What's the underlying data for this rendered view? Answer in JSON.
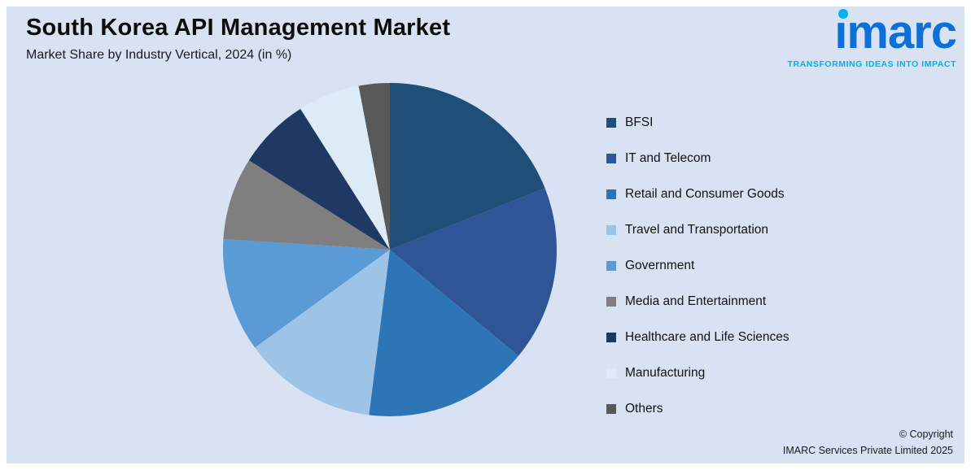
{
  "header": {
    "title": "South Korea API Management Market",
    "subtitle": "Market Share by Industry Vertical, 2024 (in %)"
  },
  "logo": {
    "name": "imarc",
    "tagline": "TRANSFORMING IDEAS INTO IMPACT",
    "text_color": "#0e6fd6",
    "accent_color": "#00b0f0"
  },
  "footer": {
    "copyright_line1": "© Copyright",
    "copyright_line2": "IMARC Services Private Limited 2025"
  },
  "colors": {
    "panel_background": "#d9e2f3",
    "frame_background": "#ffffff"
  },
  "chart_data": {
    "type": "pie",
    "title": "South Korea API Management Market",
    "subtitle": "Market Share by Industry Vertical, 2024 (in %)",
    "unit": "%",
    "start_angle_deg": 0,
    "direction": "clockwise",
    "data_labels_shown": false,
    "values_are_estimates": true,
    "legend_position": "right",
    "segments": [
      {
        "label": "BFSI",
        "value": 19,
        "color": "#1f4e79"
      },
      {
        "label": "IT and Telecom",
        "value": 17,
        "color": "#2f5597"
      },
      {
        "label": "Retail and Consumer Goods",
        "value": 16,
        "color": "#2e75b6"
      },
      {
        "label": "Travel and Transportation",
        "value": 13,
        "color": "#9dc3e6"
      },
      {
        "label": "Government",
        "value": 11,
        "color": "#5b9bd5"
      },
      {
        "label": "Media and Entertainment",
        "value": 8,
        "color": "#7f7f7f"
      },
      {
        "label": "Healthcare and Life Sciences",
        "value": 7,
        "color": "#203864"
      },
      {
        "label": "Manufacturing",
        "value": 6,
        "color": "#ddebf7"
      },
      {
        "label": "Others",
        "value": 3,
        "color": "#595959"
      }
    ]
  }
}
